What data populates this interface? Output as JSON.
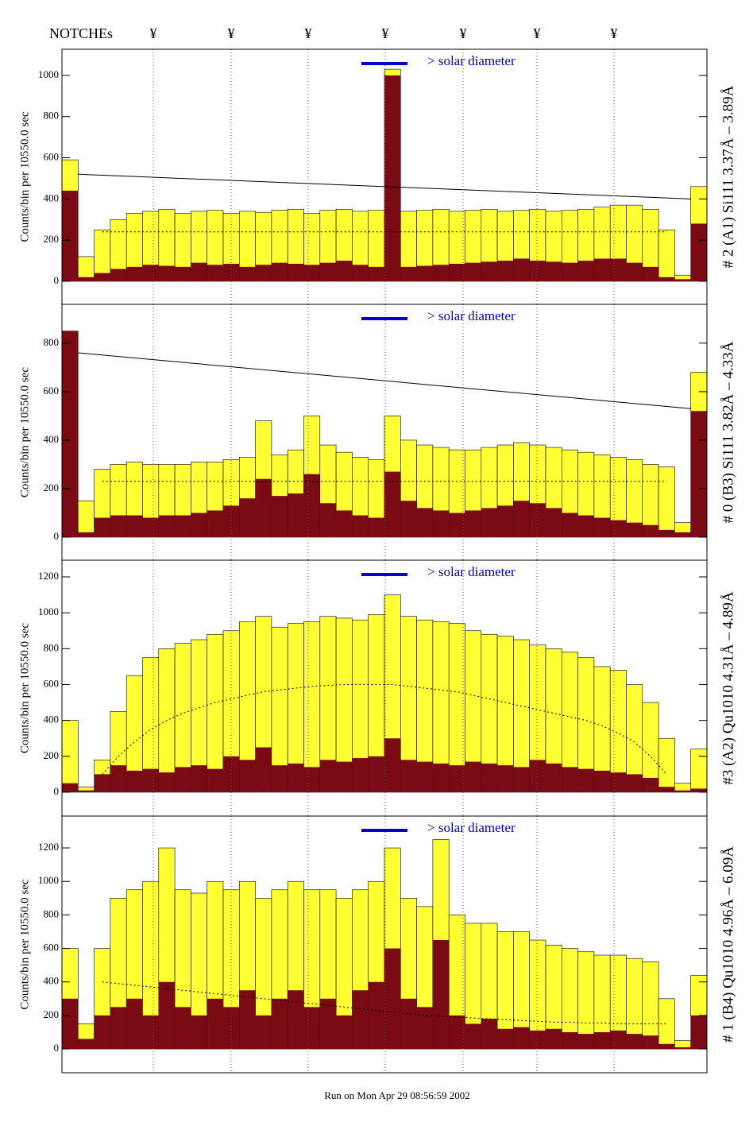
{
  "notches": {
    "label": "NOTCHEs",
    "markers": [
      "¥",
      "¥",
      "¥",
      "¥",
      "¥",
      "¥",
      "¥"
    ]
  },
  "footer": "Run on Mon Apr 29 08:56:59 2002",
  "chart_data": [
    {
      "type": "histogram",
      "title": "# 2 (A1) Si111  3.37Å – 3.89Å",
      "y_label": "Counts/bin per  10550.0 sec",
      "annotation": "> solar diameter",
      "ylim": [
        -112,
        1127
      ],
      "yticks": [
        0,
        200,
        400,
        600,
        800,
        1000
      ],
      "series": [
        {
          "color": "#ffff33",
          "values": [
            590,
            120,
            250,
            300,
            330,
            340,
            350,
            330,
            340,
            345,
            330,
            340,
            335,
            345,
            350,
            330,
            345,
            350,
            340,
            345,
            1030,
            340,
            345,
            350,
            340,
            345,
            350,
            340,
            345,
            350,
            340,
            345,
            350,
            360,
            370,
            370,
            350,
            250,
            30,
            460
          ]
        },
        {
          "color": "#7a0a14",
          "values": [
            440,
            20,
            40,
            60,
            70,
            80,
            75,
            70,
            90,
            80,
            85,
            70,
            80,
            90,
            85,
            80,
            90,
            100,
            80,
            70,
            1000,
            70,
            75,
            80,
            85,
            90,
            95,
            100,
            110,
            100,
            95,
            90,
            100,
            110,
            110,
            90,
            70,
            20,
            10,
            280
          ]
        },
        {
          "color": "#000000",
          "style": "dotted",
          "values": [
            null,
            null,
            240,
            240,
            240,
            240,
            240,
            240,
            240,
            240,
            240,
            240,
            240,
            240,
            240,
            240,
            240,
            240,
            240,
            240,
            240,
            240,
            240,
            240,
            240,
            240,
            240,
            240,
            240,
            240,
            240,
            240,
            240,
            240,
            240,
            240,
            240,
            240,
            null,
            null
          ]
        }
      ],
      "trend": {
        "color": "#000000",
        "values": [
          520,
          400
        ]
      }
    },
    {
      "type": "histogram",
      "title": "# 0 (B3) Si111  3.82Å – 4.33Å",
      "y_label": "Counts/bin per  10550.0 sec",
      "annotation": "> solar diameter",
      "ylim": [
        -95,
        960
      ],
      "yticks": [
        0,
        200,
        400,
        600,
        800
      ],
      "series": [
        {
          "color": "#ffff33",
          "values": [
            850,
            150,
            280,
            300,
            310,
            300,
            300,
            300,
            310,
            310,
            320,
            330,
            480,
            340,
            360,
            500,
            380,
            350,
            330,
            320,
            500,
            400,
            380,
            370,
            360,
            360,
            370,
            380,
            390,
            380,
            370,
            360,
            350,
            340,
            330,
            320,
            300,
            290,
            60,
            680
          ]
        },
        {
          "color": "#7a0a14",
          "values": [
            850,
            20,
            80,
            90,
            90,
            80,
            90,
            90,
            100,
            110,
            130,
            160,
            240,
            170,
            180,
            260,
            140,
            110,
            90,
            80,
            270,
            150,
            120,
            110,
            100,
            110,
            120,
            130,
            150,
            140,
            120,
            100,
            90,
            80,
            70,
            60,
            50,
            30,
            20,
            520
          ]
        },
        {
          "color": "#000000",
          "style": "dotted",
          "values": [
            null,
            null,
            230,
            230,
            230,
            230,
            230,
            230,
            230,
            230,
            230,
            230,
            230,
            230,
            230,
            230,
            230,
            230,
            230,
            230,
            230,
            230,
            230,
            230,
            230,
            230,
            230,
            230,
            230,
            230,
            230,
            230,
            230,
            230,
            230,
            230,
            230,
            230,
            null,
            null
          ]
        }
      ],
      "trend": {
        "color": "#000000",
        "values": [
          760,
          530
        ]
      }
    },
    {
      "type": "histogram",
      "title": "#3 (A2) Qu1010  4.31Å – 4.89Å",
      "y_label": "Counts/bin per  10550.0 sec",
      "annotation": "> solar diameter",
      "ylim": [
        -133,
        1293
      ],
      "yticks": [
        0,
        200,
        400,
        600,
        800,
        1000,
        1200
      ],
      "series": [
        {
          "color": "#ffff33",
          "values": [
            400,
            30,
            180,
            450,
            650,
            750,
            800,
            830,
            850,
            880,
            900,
            950,
            980,
            920,
            940,
            950,
            980,
            970,
            960,
            990,
            1100,
            980,
            960,
            950,
            940,
            900,
            880,
            870,
            850,
            820,
            800,
            780,
            750,
            700,
            680,
            600,
            500,
            300,
            50,
            240
          ]
        },
        {
          "color": "#7a0a14",
          "values": [
            50,
            10,
            100,
            150,
            120,
            130,
            110,
            140,
            150,
            130,
            200,
            180,
            250,
            150,
            160,
            140,
            180,
            170,
            190,
            200,
            300,
            180,
            170,
            160,
            150,
            170,
            160,
            150,
            140,
            180,
            160,
            140,
            130,
            120,
            110,
            100,
            80,
            30,
            10,
            20
          ]
        },
        {
          "color": "#000000",
          "style": "dotted",
          "values": [
            null,
            null,
            100,
            200,
            280,
            350,
            400,
            440,
            470,
            500,
            520,
            540,
            560,
            570,
            580,
            590,
            595,
            600,
            600,
            600,
            600,
            590,
            580,
            570,
            560,
            540,
            520,
            500,
            480,
            460,
            440,
            420,
            400,
            370,
            330,
            280,
            200,
            100,
            null,
            null
          ]
        }
      ]
    },
    {
      "type": "histogram",
      "title": "# 1 (B4) Qu1010 4.96Å – 6.09Å",
      "y_label": "Counts/bin per  10550.0 sec",
      "annotation": "> solar diameter",
      "ylim": [
        -142,
        1390
      ],
      "yticks": [
        0,
        200,
        400,
        600,
        800,
        1000,
        1200
      ],
      "series": [
        {
          "color": "#ffff33",
          "values": [
            600,
            150,
            600,
            900,
            950,
            1000,
            1200,
            950,
            930,
            1000,
            950,
            1000,
            900,
            950,
            1000,
            950,
            950,
            900,
            950,
            1000,
            1200,
            900,
            850,
            1250,
            800,
            750,
            750,
            700,
            700,
            650,
            620,
            600,
            580,
            560,
            560,
            540,
            520,
            300,
            50,
            440
          ]
        },
        {
          "color": "#7a0a14",
          "values": [
            300,
            60,
            200,
            250,
            300,
            200,
            400,
            250,
            200,
            300,
            250,
            350,
            200,
            300,
            350,
            250,
            300,
            200,
            350,
            400,
            600,
            300,
            250,
            650,
            200,
            150,
            180,
            120,
            130,
            110,
            120,
            100,
            90,
            100,
            110,
            90,
            80,
            30,
            10,
            200
          ]
        },
        {
          "color": "#000000",
          "style": "dotted",
          "values": [
            null,
            null,
            400,
            390,
            380,
            370,
            360,
            350,
            340,
            330,
            320,
            310,
            300,
            290,
            280,
            270,
            260,
            250,
            240,
            230,
            220,
            210,
            200,
            195,
            190,
            185,
            180,
            175,
            170,
            165,
            160,
            160,
            155,
            155,
            150,
            150,
            150,
            150,
            null,
            null
          ]
        }
      ]
    }
  ]
}
